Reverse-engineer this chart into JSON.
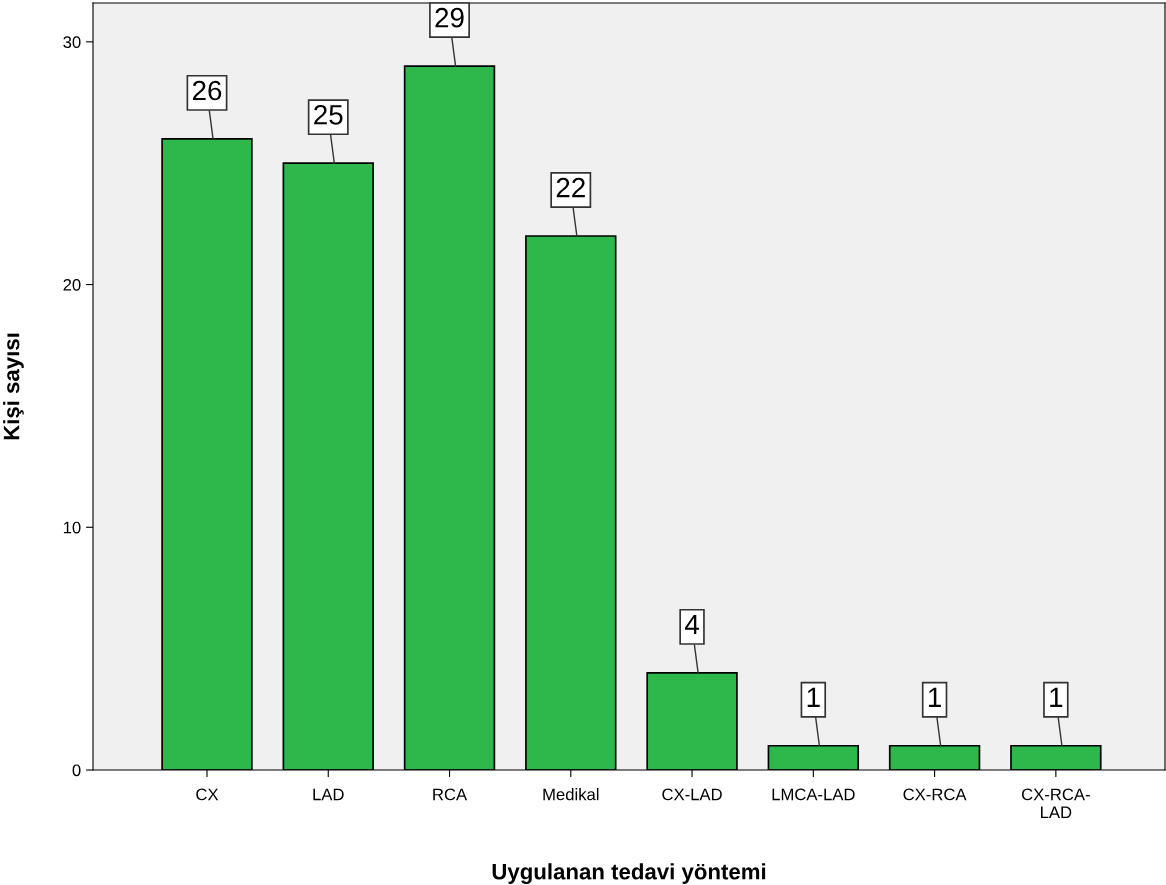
{
  "chart_data": {
    "type": "bar",
    "xlabel": "Uygulanan tedavi yöntemi",
    "ylabel": "Kişi sayısı",
    "categories": [
      "CX",
      "LAD",
      "RCA",
      "Medikal",
      "CX-LAD",
      "LMCA-LAD",
      "CX-RCA",
      "CX-RCA-LAD"
    ],
    "values": [
      26,
      25,
      29,
      22,
      4,
      1,
      1,
      1
    ],
    "color": "#2eb84b",
    "ylim": [
      0,
      31.6
    ],
    "yticks": [
      0,
      10,
      20,
      30
    ],
    "grid": false,
    "data_labels": true
  }
}
